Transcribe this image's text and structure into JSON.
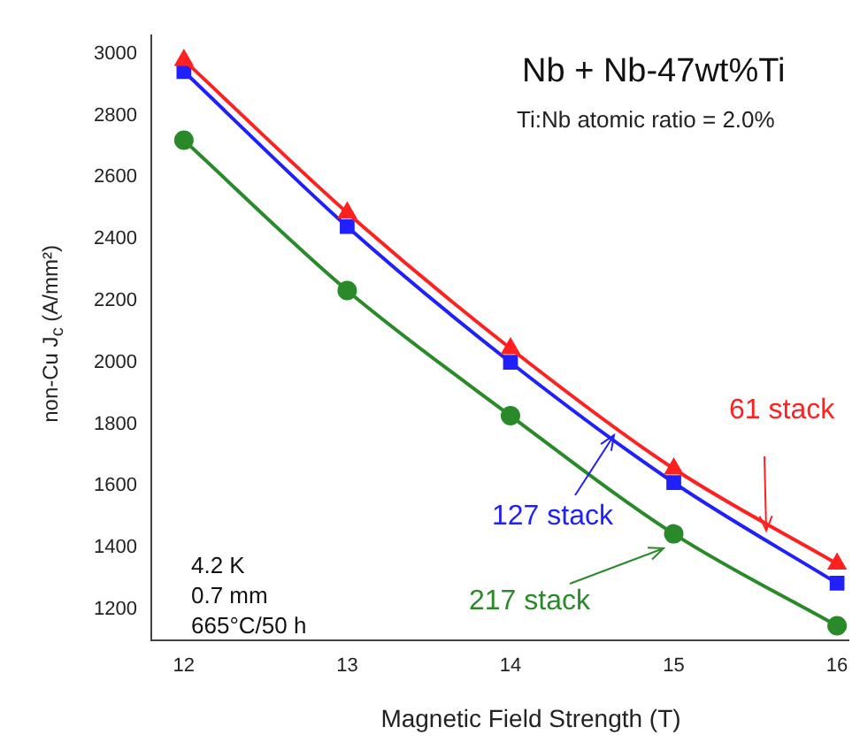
{
  "chart_data": {
    "type": "line",
    "title": "Nb + Nb-47wt%Ti",
    "subtitle": "Ti:Nb atomic ratio = 2.0%",
    "xlabel": "Magnetic Field Strength (T)",
    "ylabel": "non-Cu J$_{c}$ (A/mm²)",
    "x": [
      12,
      13,
      14,
      15,
      16
    ],
    "series": [
      {
        "name": "61 stack",
        "color": "#ff2020",
        "marker": "triangle",
        "values": [
          2980,
          2485,
          2045,
          1655,
          1347
        ]
      },
      {
        "name": "127 stack",
        "color": "#2020ff",
        "marker": "square",
        "values": [
          2943,
          2440,
          2000,
          1610,
          1284
        ]
      },
      {
        "name": "217 stack",
        "color": "#2a8a2a",
        "marker": "circle",
        "values": [
          2720,
          2233,
          1827,
          1444,
          1146
        ]
      }
    ],
    "xlim": [
      11.8,
      16.07
    ],
    "xticks": [
      12,
      13,
      14,
      15,
      16
    ],
    "ylim": [
      1100,
      3060
    ],
    "yticks": [
      3000,
      2800,
      2600,
      2400,
      2200,
      2000,
      1800,
      1600,
      1400,
      1200
    ],
    "grid": false,
    "legend": "bottom right",
    "annotations": [
      "4.2 K",
      "0.7 mm",
      "665°C/50 h"
    ]
  }
}
